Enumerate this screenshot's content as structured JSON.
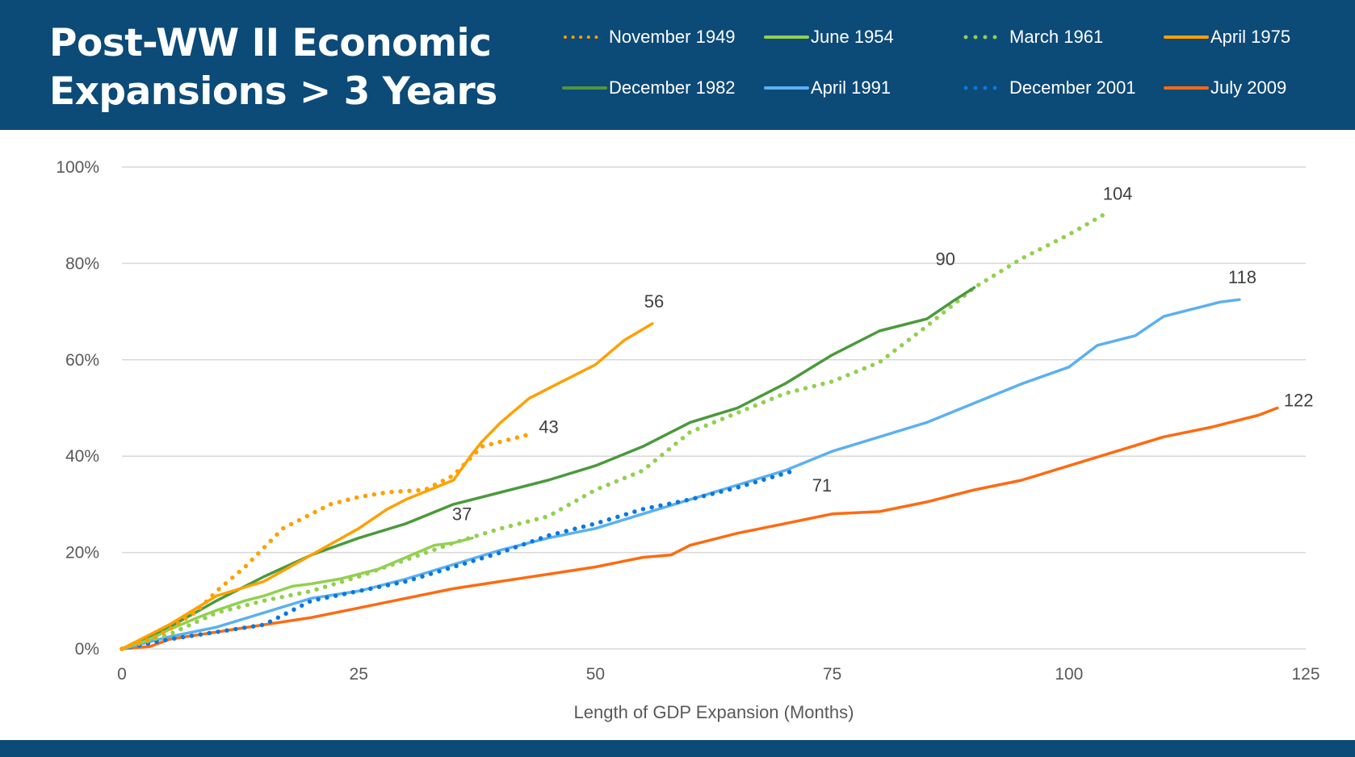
{
  "chart_data": {
    "type": "line",
    "title": "Post-WW II Economic Expansions > 3 Years",
    "title_lines": [
      "Post-WW II Economic",
      "Expansions > 3 Years"
    ],
    "xlabel": "Length of GDP Expansion (Months)",
    "ylabel": "",
    "xlim": [
      0,
      125
    ],
    "ylim": [
      0,
      100
    ],
    "x_ticks": [
      0,
      25,
      50,
      75,
      100,
      125
    ],
    "x_tick_labels": [
      "0",
      "25",
      "50",
      "75",
      "100",
      "125"
    ],
    "y_ticks": [
      0,
      20,
      40,
      60,
      80,
      100
    ],
    "y_tick_labels": [
      "0%",
      "20%",
      "40%",
      "60%",
      "80%",
      "100%"
    ],
    "grid": "horizontal",
    "legend_position": "top-right",
    "series": [
      {
        "name": "November 1949",
        "color": "#ffa000",
        "style": "dotted",
        "end_label": "43",
        "points": [
          [
            0,
            0
          ],
          [
            3,
            2
          ],
          [
            5,
            4
          ],
          [
            8,
            8
          ],
          [
            10,
            12
          ],
          [
            13,
            17
          ],
          [
            15,
            21
          ],
          [
            17,
            25
          ],
          [
            20,
            28
          ],
          [
            22,
            30
          ],
          [
            25,
            31.5
          ],
          [
            28,
            32.5
          ],
          [
            32,
            33
          ],
          [
            35,
            36
          ],
          [
            37,
            40
          ],
          [
            38,
            42
          ],
          [
            40,
            43
          ],
          [
            43,
            44.5
          ]
        ]
      },
      {
        "name": "June 1954",
        "color": "#92d050",
        "style": "solid",
        "end_label": "37",
        "points": [
          [
            0,
            0
          ],
          [
            3,
            2
          ],
          [
            5,
            4
          ],
          [
            8,
            6.5
          ],
          [
            10,
            8
          ],
          [
            13,
            10
          ],
          [
            15,
            11
          ],
          [
            18,
            13
          ],
          [
            20,
            13.5
          ],
          [
            23,
            14.5
          ],
          [
            25,
            15.5
          ],
          [
            27,
            16.5
          ],
          [
            30,
            19
          ],
          [
            33,
            21.5
          ],
          [
            35,
            22
          ],
          [
            37,
            23
          ]
        ]
      },
      {
        "name": "March 1961",
        "color": "#92d050",
        "style": "dotted",
        "end_label": "104",
        "points": [
          [
            0,
            0
          ],
          [
            5,
            3
          ],
          [
            10,
            7.5
          ],
          [
            15,
            10
          ],
          [
            20,
            12
          ],
          [
            25,
            15
          ],
          [
            30,
            18.5
          ],
          [
            35,
            22
          ],
          [
            40,
            25
          ],
          [
            45,
            27.5
          ],
          [
            50,
            33
          ],
          [
            55,
            37
          ],
          [
            60,
            45
          ],
          [
            65,
            49
          ],
          [
            70,
            53
          ],
          [
            75,
            55.5
          ],
          [
            80,
            59.5
          ],
          [
            85,
            67
          ],
          [
            90,
            75
          ],
          [
            95,
            81
          ],
          [
            100,
            86
          ],
          [
            104,
            90.5
          ]
        ]
      },
      {
        "name": "April 1975",
        "color": "#ffa000",
        "style": "solid",
        "end_label": "56",
        "points": [
          [
            0,
            0
          ],
          [
            5,
            5
          ],
          [
            10,
            11
          ],
          [
            15,
            14
          ],
          [
            20,
            19.5
          ],
          [
            25,
            25
          ],
          [
            28,
            29
          ],
          [
            30,
            31
          ],
          [
            35,
            35
          ],
          [
            37,
            40.5
          ],
          [
            38,
            43
          ],
          [
            40,
            47
          ],
          [
            43,
            52
          ],
          [
            46,
            55
          ],
          [
            50,
            59
          ],
          [
            53,
            64
          ],
          [
            56,
            67.5
          ]
        ]
      },
      {
        "name": "December 1982",
        "color": "#4a9a3b",
        "style": "solid",
        "end_label": "90",
        "points": [
          [
            0,
            0
          ],
          [
            5,
            4.5
          ],
          [
            10,
            10
          ],
          [
            15,
            15
          ],
          [
            20,
            19.5
          ],
          [
            25,
            23
          ],
          [
            30,
            26
          ],
          [
            35,
            30
          ],
          [
            40,
            32.5
          ],
          [
            45,
            35
          ],
          [
            50,
            38
          ],
          [
            55,
            42
          ],
          [
            60,
            47
          ],
          [
            65,
            50
          ],
          [
            70,
            55
          ],
          [
            75,
            61
          ],
          [
            80,
            66
          ],
          [
            85,
            68.5
          ],
          [
            88,
            72.5
          ],
          [
            90,
            75
          ]
        ]
      },
      {
        "name": "April 1991",
        "color": "#5cb0f0",
        "style": "solid",
        "end_label": "118",
        "points": [
          [
            0,
            0
          ],
          [
            5,
            2.5
          ],
          [
            10,
            4.5
          ],
          [
            15,
            7.5
          ],
          [
            20,
            10.5
          ],
          [
            25,
            12
          ],
          [
            30,
            14.5
          ],
          [
            35,
            17.5
          ],
          [
            40,
            20.5
          ],
          [
            45,
            23
          ],
          [
            50,
            25
          ],
          [
            55,
            28
          ],
          [
            60,
            31
          ],
          [
            65,
            34
          ],
          [
            70,
            37
          ],
          [
            75,
            41
          ],
          [
            80,
            44
          ],
          [
            85,
            47
          ],
          [
            90,
            51
          ],
          [
            95,
            55
          ],
          [
            100,
            58.5
          ],
          [
            103,
            63
          ],
          [
            107,
            65
          ],
          [
            110,
            69
          ],
          [
            113,
            70.5
          ],
          [
            116,
            72
          ],
          [
            118,
            72.5
          ]
        ]
      },
      {
        "name": "December 2001",
        "color": "#0a78e0",
        "style": "dotted",
        "end_label": "71",
        "points": [
          [
            0,
            0
          ],
          [
            5,
            2
          ],
          [
            10,
            3.5
          ],
          [
            15,
            5
          ],
          [
            20,
            10
          ],
          [
            25,
            12
          ],
          [
            30,
            14
          ],
          [
            35,
            17
          ],
          [
            40,
            20
          ],
          [
            45,
            23.5
          ],
          [
            50,
            26
          ],
          [
            55,
            29
          ],
          [
            60,
            31
          ],
          [
            65,
            33.5
          ],
          [
            71,
            37
          ]
        ]
      },
      {
        "name": "July 2009",
        "color": "#ff6a10",
        "style": "solid",
        "end_label": "122",
        "points": [
          [
            0,
            0
          ],
          [
            3,
            0.5
          ],
          [
            5,
            2
          ],
          [
            10,
            3.5
          ],
          [
            15,
            5
          ],
          [
            20,
            6.5
          ],
          [
            25,
            8.5
          ],
          [
            30,
            10.5
          ],
          [
            35,
            12.5
          ],
          [
            40,
            14
          ],
          [
            45,
            15.5
          ],
          [
            50,
            17
          ],
          [
            55,
            19
          ],
          [
            58,
            19.5
          ],
          [
            60,
            21.5
          ],
          [
            65,
            24
          ],
          [
            70,
            26
          ],
          [
            75,
            28
          ],
          [
            80,
            28.5
          ],
          [
            85,
            30.5
          ],
          [
            90,
            33
          ],
          [
            95,
            35
          ],
          [
            100,
            38
          ],
          [
            105,
            41
          ],
          [
            110,
            44
          ],
          [
            115,
            46
          ],
          [
            120,
            48.5
          ],
          [
            122,
            50
          ]
        ]
      }
    ]
  },
  "colors": {
    "header_bg": "#0c4a78",
    "grid": "#d9d9d9"
  }
}
